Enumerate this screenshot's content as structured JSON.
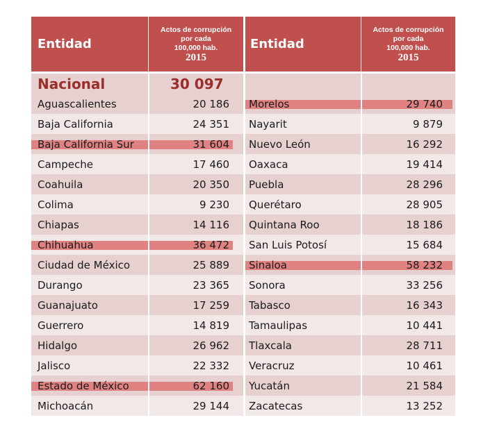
{
  "header": {
    "entity_label": "Entidad",
    "metric_line1": "Actos de corrupción",
    "metric_line2": "por cada",
    "metric_line3": "100,000  hab.",
    "year": "2015"
  },
  "national": {
    "name": "Nacional",
    "value": "30 097"
  },
  "left_rows": [
    {
      "name": "Aguascalientes",
      "value": "20 186",
      "highlight": false
    },
    {
      "name": "Baja California",
      "value": "24 351",
      "highlight": false
    },
    {
      "name": "Baja California Sur",
      "value": "31 604",
      "highlight": true
    },
    {
      "name": "Campeche",
      "value": "17 460",
      "highlight": false
    },
    {
      "name": "Coahuila",
      "value": "20 350",
      "highlight": false
    },
    {
      "name": "Colima",
      "value": "9 230",
      "highlight": false
    },
    {
      "name": "Chiapas",
      "value": "14 116",
      "highlight": false
    },
    {
      "name": "Chihuahua",
      "value": "36 472",
      "highlight": true
    },
    {
      "name": "Ciudad de México",
      "value": "25 889",
      "highlight": false
    },
    {
      "name": "Durango",
      "value": "23 365",
      "highlight": false
    },
    {
      "name": "Guanajuato",
      "value": "17 259",
      "highlight": false
    },
    {
      "name": "Guerrero",
      "value": "14 819",
      "highlight": false
    },
    {
      "name": "Hidalgo",
      "value": "26 962",
      "highlight": false
    },
    {
      "name": "Jalisco",
      "value": "22 332",
      "highlight": false
    },
    {
      "name": "Estado de México",
      "value": "62 160",
      "highlight": true
    },
    {
      "name": "Michoacán",
      "value": "29 144",
      "highlight": false
    }
  ],
  "right_rows": [
    {
      "name": "Morelos",
      "value": "29 740",
      "highlight": true
    },
    {
      "name": "Nayarit",
      "value": "9 879",
      "highlight": false
    },
    {
      "name": "Nuevo León",
      "value": "16 292",
      "highlight": false
    },
    {
      "name": "Oaxaca",
      "value": "19 414",
      "highlight": false
    },
    {
      "name": "Puebla",
      "value": "28 296",
      "highlight": false
    },
    {
      "name": "Querétaro",
      "value": "28 905",
      "highlight": false
    },
    {
      "name": "Quintana Roo",
      "value": "18 186",
      "highlight": false
    },
    {
      "name": "San Luis Potosí",
      "value": "15 684",
      "highlight": false
    },
    {
      "name": "Sinaloa",
      "value": "58 232",
      "highlight": true
    },
    {
      "name": "Sonora",
      "value": "33 256",
      "highlight": false
    },
    {
      "name": "Tabasco",
      "value": "16 343",
      "highlight": false
    },
    {
      "name": "Tamaulipas",
      "value": "10 441",
      "highlight": false
    },
    {
      "name": "Tlaxcala",
      "value": "28 711",
      "highlight": false
    },
    {
      "name": "Veracruz",
      "value": "10 461",
      "highlight": false
    },
    {
      "name": "Yucatán",
      "value": "21 584",
      "highlight": false
    },
    {
      "name": "Zacatecas",
      "value": "13 252",
      "highlight": false
    }
  ],
  "colors": {
    "header_bg": "#c0504d",
    "row_dark": "#e6d0d0",
    "row_light": "#f3e8e8",
    "highlight": "#e08282",
    "national_text": "#9b2d2a"
  }
}
